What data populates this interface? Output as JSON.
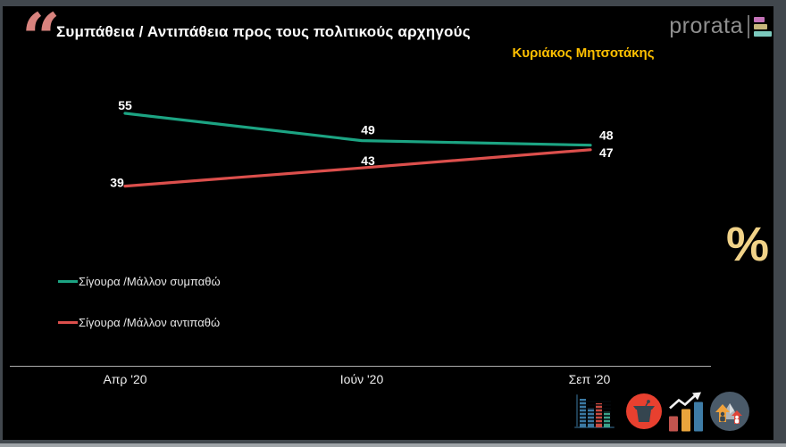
{
  "header": {
    "title": "Συμπάθεια / Αντιπάθεια προς τους πολιτικούς αρχηγούς",
    "subtitle": "Κυριάκος Μητσοτάκης",
    "logo": {
      "text": "prorata"
    }
  },
  "chart_data": {
    "type": "line",
    "title": "Συμπάθεια / Αντιπάθεια προς τους πολιτικούς αρχηγούς",
    "subtitle": "Κυριάκος Μητσοτάκης",
    "categories": [
      "Απρ '20",
      "Ιούν '20",
      "Σεπ '20"
    ],
    "series": [
      {
        "name": "Σίγουρα /Μάλλον συμπαθώ",
        "color": "#1CA483",
        "values": [
          55,
          49,
          48
        ]
      },
      {
        "name": "Σίγουρα /Μάλλον αντιπαθώ",
        "color": "#DC4F4C",
        "values": [
          39,
          43,
          47
        ]
      }
    ],
    "xlabel": "",
    "ylabel": "",
    "ylim": [
      35,
      60
    ],
    "grid": false,
    "legend_position": "bottom-left",
    "data_labels": true
  },
  "percent_symbol": "%",
  "quote_glyph": "“",
  "colors": {
    "background": "#000000",
    "frame": "#41474D",
    "title_text": "#FFFFFF",
    "subtitle_text": "#FFC000",
    "quote": "#D9837E",
    "percent": "#F0D288",
    "axis": "#ACACAC",
    "logo_text": "#8F8F8F",
    "logo_bars": [
      "#C473B8",
      "#C6B67B",
      "#7BC9BD"
    ]
  },
  "footer_icons": [
    {
      "name": "bar-chart-icon"
    },
    {
      "name": "podium-icon"
    },
    {
      "name": "rising-chart-icon"
    },
    {
      "name": "people-growth-icon"
    }
  ]
}
